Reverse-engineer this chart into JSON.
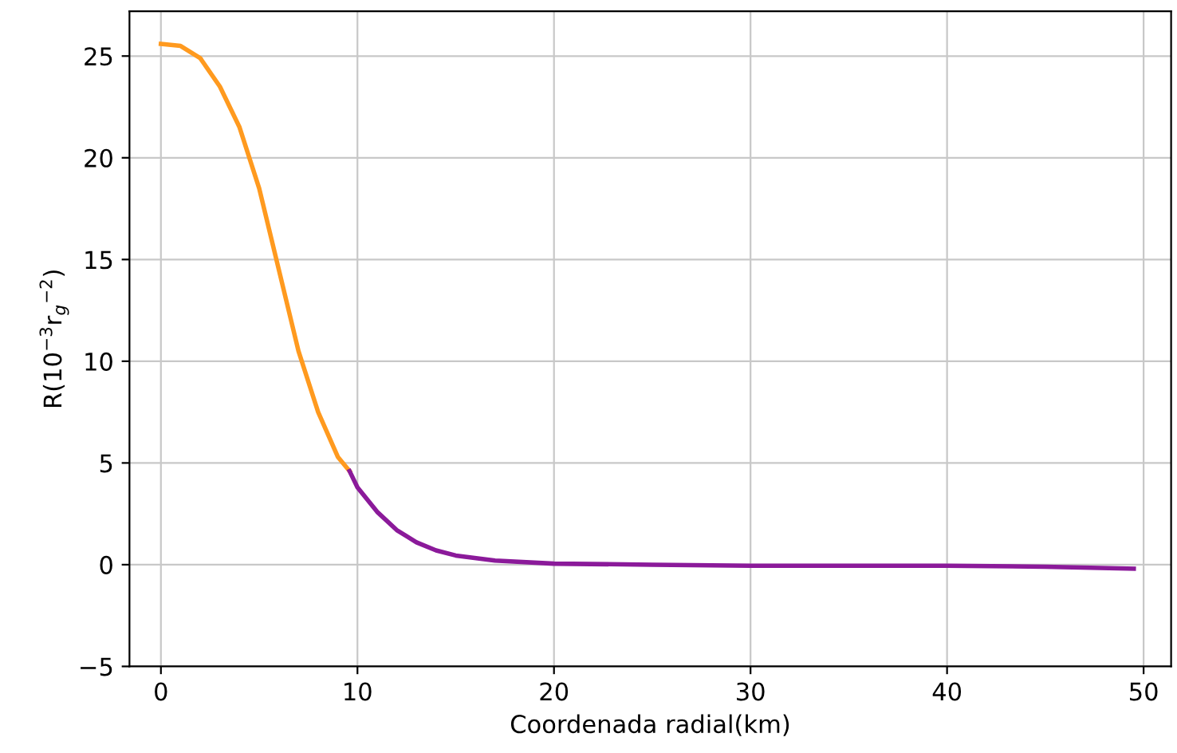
{
  "chart_data": {
    "type": "line",
    "xlabel": "Coordenada radial(km)",
    "ylabel": "R(10$^{−3}$r$_{g}$$^{−2}$)",
    "series": [
      {
        "color": "#ff9a1f",
        "x": [
          0,
          1,
          2,
          3,
          4,
          5,
          6,
          7,
          8,
          9,
          9.6
        ],
        "values": [
          25.6,
          25.5,
          24.9,
          23.5,
          21.5,
          18.5,
          14.5,
          10.5,
          7.5,
          5.3,
          4.6
        ]
      },
      {
        "color": "#8b1a9a",
        "x": [
          9.6,
          10,
          11,
          12,
          13,
          14,
          15,
          17,
          20,
          25,
          30,
          40,
          45,
          49.5
        ],
        "values": [
          4.6,
          3.8,
          2.6,
          1.7,
          1.1,
          0.7,
          0.45,
          0.2,
          0.05,
          0,
          -0.05,
          -0.05,
          -0.1,
          -0.2
        ]
      }
    ],
    "xlim": [
      -1.6,
      51.4
    ],
    "ylim": [
      -5,
      27.2
    ],
    "xticks": [
      0,
      10,
      20,
      30,
      40,
      50
    ],
    "yticks": [
      -5,
      0,
      5,
      10,
      15,
      20,
      25
    ],
    "grid": true,
    "marker": "none",
    "line_style": "solid"
  }
}
